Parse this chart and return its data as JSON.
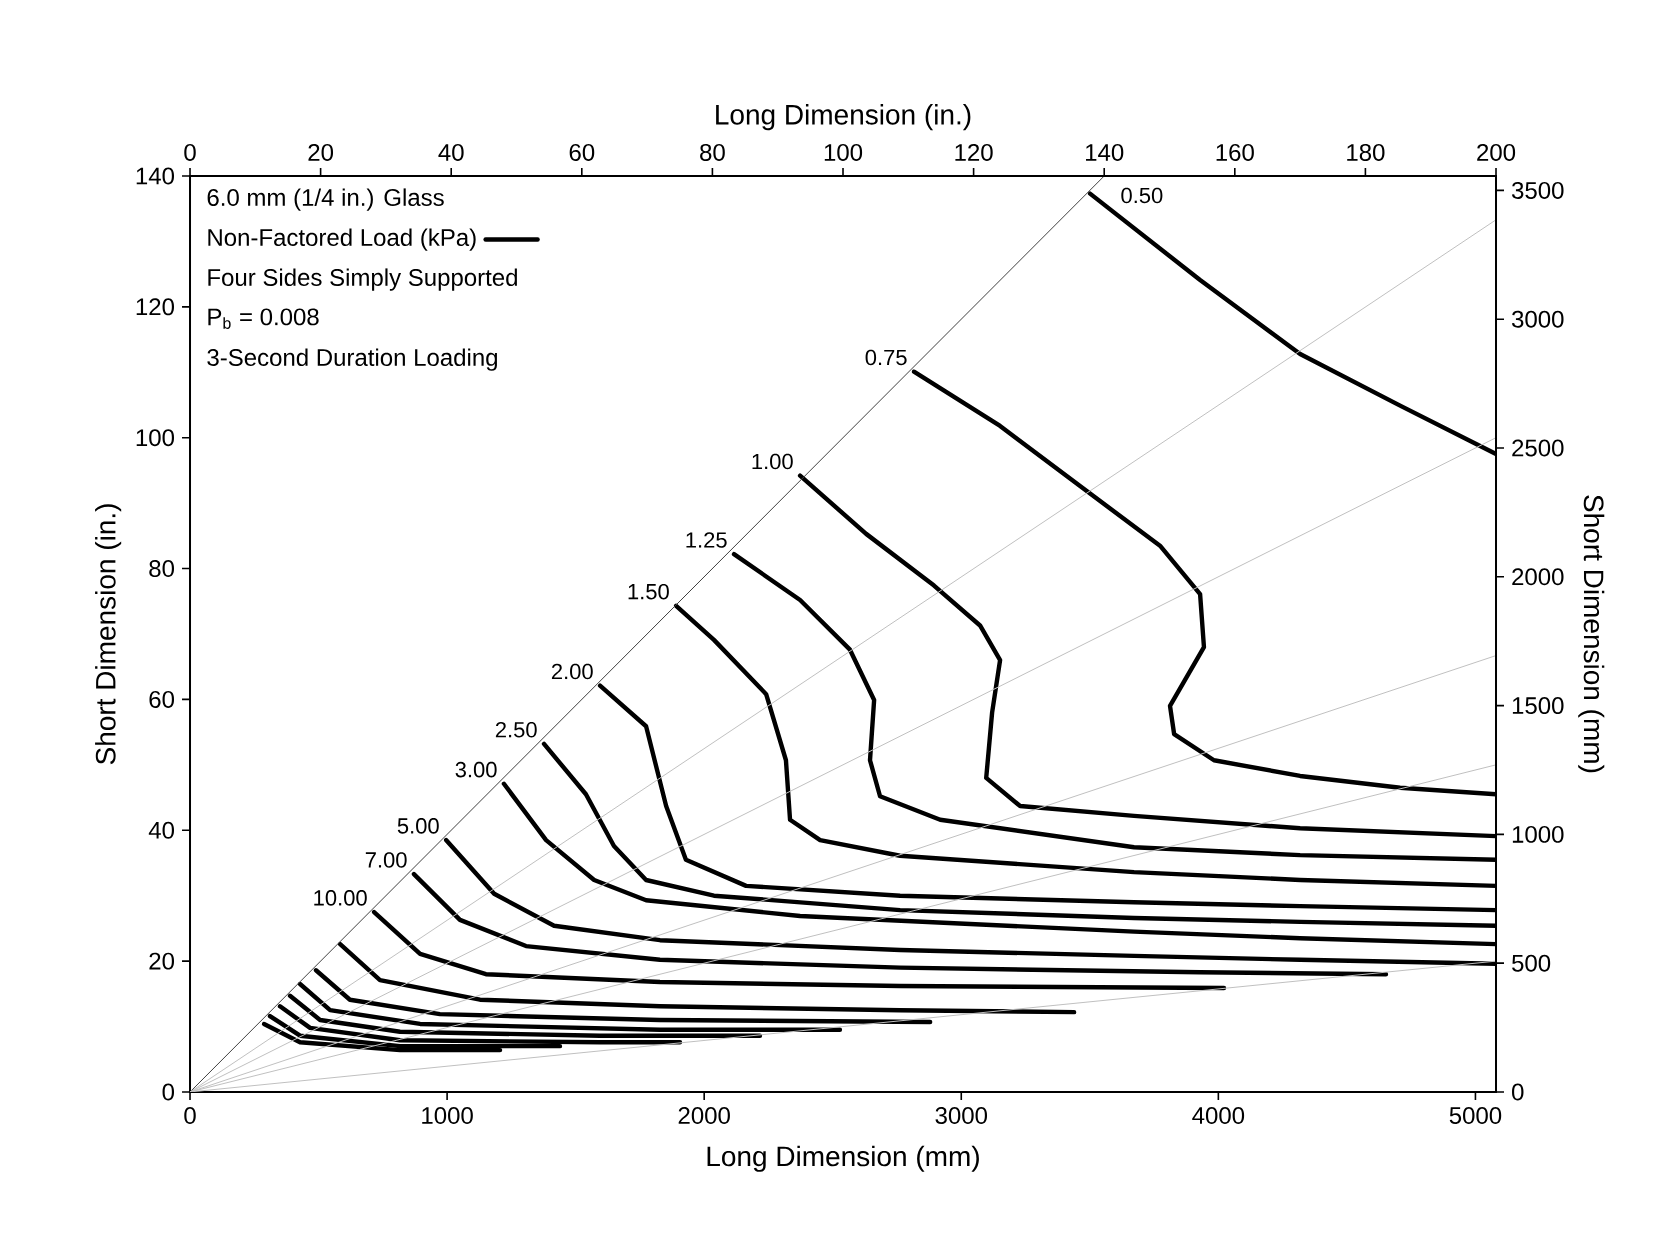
{
  "chart_data": {
    "type": "line",
    "xlabel": "Long Dimension (mm)",
    "x2label": "Long Dimension (in.)",
    "ylabel": "Short Dimension (in.)",
    "y2label": "Short Dimension (mm)",
    "xlim": [
      0,
      5080
    ],
    "xticks": [
      0,
      1000,
      2000,
      3000,
      4000,
      5000
    ],
    "x2lim": [
      0,
      200
    ],
    "x2ticks": [
      0,
      20,
      40,
      60,
      80,
      100,
      120,
      140,
      160,
      180,
      200
    ],
    "ylim": [
      0,
      140
    ],
    "yticks": [
      0,
      20,
      40,
      60,
      80,
      100,
      120,
      140
    ],
    "y2lim": [
      0,
      3556
    ],
    "y2ticks": [
      0,
      500,
      1000,
      1500,
      2000,
      2500,
      3000,
      3500
    ],
    "series": [
      {
        "name": "0.50",
        "color": "#000000",
        "x": [
          3501,
          3929,
          4318,
          4707,
          5080
        ],
        "values": [
          137.3,
          124.1,
          112.8,
          104.9,
          97.5
        ]
      },
      {
        "name": "0.75",
        "color": "#000000",
        "x": [
          2816,
          3151,
          3462,
          3773,
          3929,
          3944,
          3812,
          3828,
          3983,
          4318,
          4707,
          5080
        ],
        "values": [
          110.1,
          101.8,
          92.6,
          83.5,
          76.1,
          68.0,
          59.0,
          54.7,
          50.7,
          48.3,
          46.5,
          45.5
        ]
      },
      {
        "name": "1.00",
        "color": "#000000",
        "x": [
          2373,
          2630,
          2894,
          3073,
          3151,
          3120,
          3097,
          3229,
          3672,
          4318,
          5080
        ],
        "values": [
          94.2,
          85.3,
          77.4,
          71.3,
          66.0,
          58.0,
          48.0,
          43.7,
          42.2,
          40.3,
          39.1
        ]
      },
      {
        "name": "1.25",
        "color": "#000000",
        "x": [
          2116,
          2373,
          2567,
          2661,
          2645,
          2684,
          2918,
          3672,
          4318,
          5080
        ],
        "values": [
          82.2,
          75.2,
          67.6,
          59.9,
          50.7,
          45.2,
          41.6,
          37.4,
          36.2,
          35.5
        ]
      },
      {
        "name": "1.50",
        "color": "#000000",
        "x": [
          1891,
          2038,
          2241,
          2318,
          2334,
          2451,
          2762,
          3672,
          4318,
          5080
        ],
        "values": [
          74.3,
          69.1,
          60.8,
          50.7,
          41.6,
          38.5,
          36.1,
          33.6,
          32.4,
          31.5
        ]
      },
      {
        "name": "2.00",
        "color": "#000000",
        "x": [
          1595,
          1774,
          1852,
          1929,
          2163,
          2762,
          3672,
          4318,
          5080
        ],
        "values": [
          62.1,
          55.9,
          43.7,
          35.5,
          31.5,
          30.0,
          29.0,
          28.4,
          27.8
        ]
      },
      {
        "name": "2.50",
        "color": "#000000",
        "x": [
          1377,
          1540,
          1649,
          1774,
          2038,
          2762,
          3672,
          4318,
          5080
        ],
        "values": [
          53.2,
          45.5,
          37.6,
          32.4,
          30.0,
          27.8,
          26.6,
          26.0,
          25.4
        ]
      },
      {
        "name": "3.00",
        "color": "#000000",
        "x": [
          1221,
          1385,
          1572,
          1774,
          2373,
          3672,
          4318,
          5080
        ],
        "values": [
          47.1,
          38.5,
          32.4,
          29.3,
          26.9,
          24.5,
          23.5,
          22.6
        ]
      },
      {
        "name": "5.00",
        "color": "#000000",
        "x": [
          996,
          1183,
          1416,
          1828,
          2762,
          3672,
          4318,
          5080
        ],
        "values": [
          38.5,
          30.3,
          25.4,
          23.2,
          21.7,
          20.8,
          20.2,
          19.6
        ]
      },
      {
        "name": "7.00",
        "color": "#000000",
        "x": [
          871,
          1050,
          1307,
          1828,
          2762,
          3929,
          4652
        ],
        "values": [
          33.3,
          26.3,
          22.3,
          20.2,
          19.0,
          18.3,
          18.0
        ]
      },
      {
        "name": "10.00",
        "color": "#000000",
        "x": [
          716,
          895,
          1151,
          1828,
          2762,
          4022
        ],
        "values": [
          27.5,
          21.1,
          18.0,
          16.8,
          16.2,
          15.9
        ]
      },
      {
        "color": "#000000",
        "x": [
          584,
          739,
          1128,
          1828,
          2762,
          3439
        ],
        "values": [
          22.6,
          17.1,
          14.1,
          13.1,
          12.5,
          12.2
        ]
      },
      {
        "color": "#000000",
        "x": [
          490,
          622,
          972,
          1828,
          2879
        ],
        "values": [
          18.6,
          14.1,
          11.9,
          11.0,
          10.7
        ]
      },
      {
        "color": "#000000",
        "x": [
          428,
          545,
          895,
          1828,
          2528
        ],
        "values": [
          16.5,
          12.5,
          10.4,
          9.5,
          9.5
        ]
      },
      {
        "color": "#000000",
        "x": [
          389,
          506,
          817,
          1595,
          2217
        ],
        "values": [
          14.7,
          11.0,
          9.2,
          8.6,
          8.6
        ]
      },
      {
        "color": "#000000",
        "x": [
          350,
          467,
          817,
          1595,
          1906
        ],
        "values": [
          13.1,
          9.8,
          7.9,
          7.6,
          7.6
        ]
      },
      {
        "color": "#000000",
        "x": [
          311,
          428,
          817,
          1439
        ],
        "values": [
          11.6,
          8.6,
          7.0,
          7.0
        ]
      },
      {
        "color": "#000000",
        "x": [
          288,
          428,
          817,
          1206
        ],
        "values": [
          10.4,
          7.6,
          6.4,
          6.4
        ]
      },
      {
        "color": "#404040",
        "x": [
          0,
          3556
        ],
        "values": [
          0,
          140
        ]
      },
      {
        "color": "#c0c0c0",
        "x": [
          0,
          5080
        ],
        "values": [
          0,
          133.3
        ]
      },
      {
        "color": "#c0c0c0",
        "x": [
          0,
          5080
        ],
        "values": [
          0,
          100
        ]
      },
      {
        "color": "#c0c0c0",
        "x": [
          0,
          5080
        ],
        "values": [
          0,
          66.7
        ]
      },
      {
        "color": "#c0c0c0",
        "x": [
          0,
          5080
        ],
        "values": [
          0,
          50
        ]
      },
      {
        "color": "#c0c0c0",
        "x": [
          0,
          5080
        ],
        "values": [
          0,
          20
        ]
      }
    ],
    "annotations": [
      "6.0 mm (1/4 in.) Glass",
      "Non-Factored Load (kPa)",
      "Four Sides Simply Supported",
      "P$_{b}$ = 0.008",
      "3-Second Duration Loading"
    ]
  }
}
